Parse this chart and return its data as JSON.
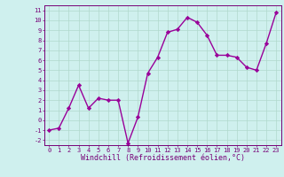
{
  "x": [
    0,
    1,
    2,
    3,
    4,
    5,
    6,
    7,
    8,
    9,
    10,
    11,
    12,
    13,
    14,
    15,
    16,
    17,
    18,
    19,
    20,
    21,
    22,
    23
  ],
  "y": [
    -1,
    -0.8,
    1.2,
    3.5,
    1.2,
    2.2,
    2.0,
    2.0,
    -2.3,
    0.3,
    4.7,
    6.3,
    8.8,
    9.1,
    10.3,
    9.8,
    8.5,
    6.5,
    6.5,
    6.3,
    5.3,
    5.0,
    7.7,
    10.8
  ],
  "line_color": "#990099",
  "marker": "D",
  "markersize": 2.2,
  "linewidth": 1.0,
  "xlabel": "Windchill (Refroidissement éolien,°C)",
  "xlabel_fontsize": 6.0,
  "ylabel_ticks": [
    -2,
    -1,
    0,
    1,
    2,
    3,
    4,
    5,
    6,
    7,
    8,
    9,
    10,
    11
  ],
  "xtick_labels": [
    "0",
    "1",
    "2",
    "3",
    "4",
    "5",
    "6",
    "7",
    "8",
    "9",
    "10",
    "11",
    "12",
    "13",
    "14",
    "15",
    "16",
    "17",
    "18",
    "19",
    "20",
    "21",
    "22",
    "23"
  ],
  "ylim": [
    -2.5,
    11.5
  ],
  "xlim": [
    -0.5,
    23.5
  ],
  "bg_color": "#cff0ee",
  "grid_color": "#b0d8cc",
  "tick_fontsize": 5.0,
  "label_color": "#770077",
  "spine_color": "#770077"
}
